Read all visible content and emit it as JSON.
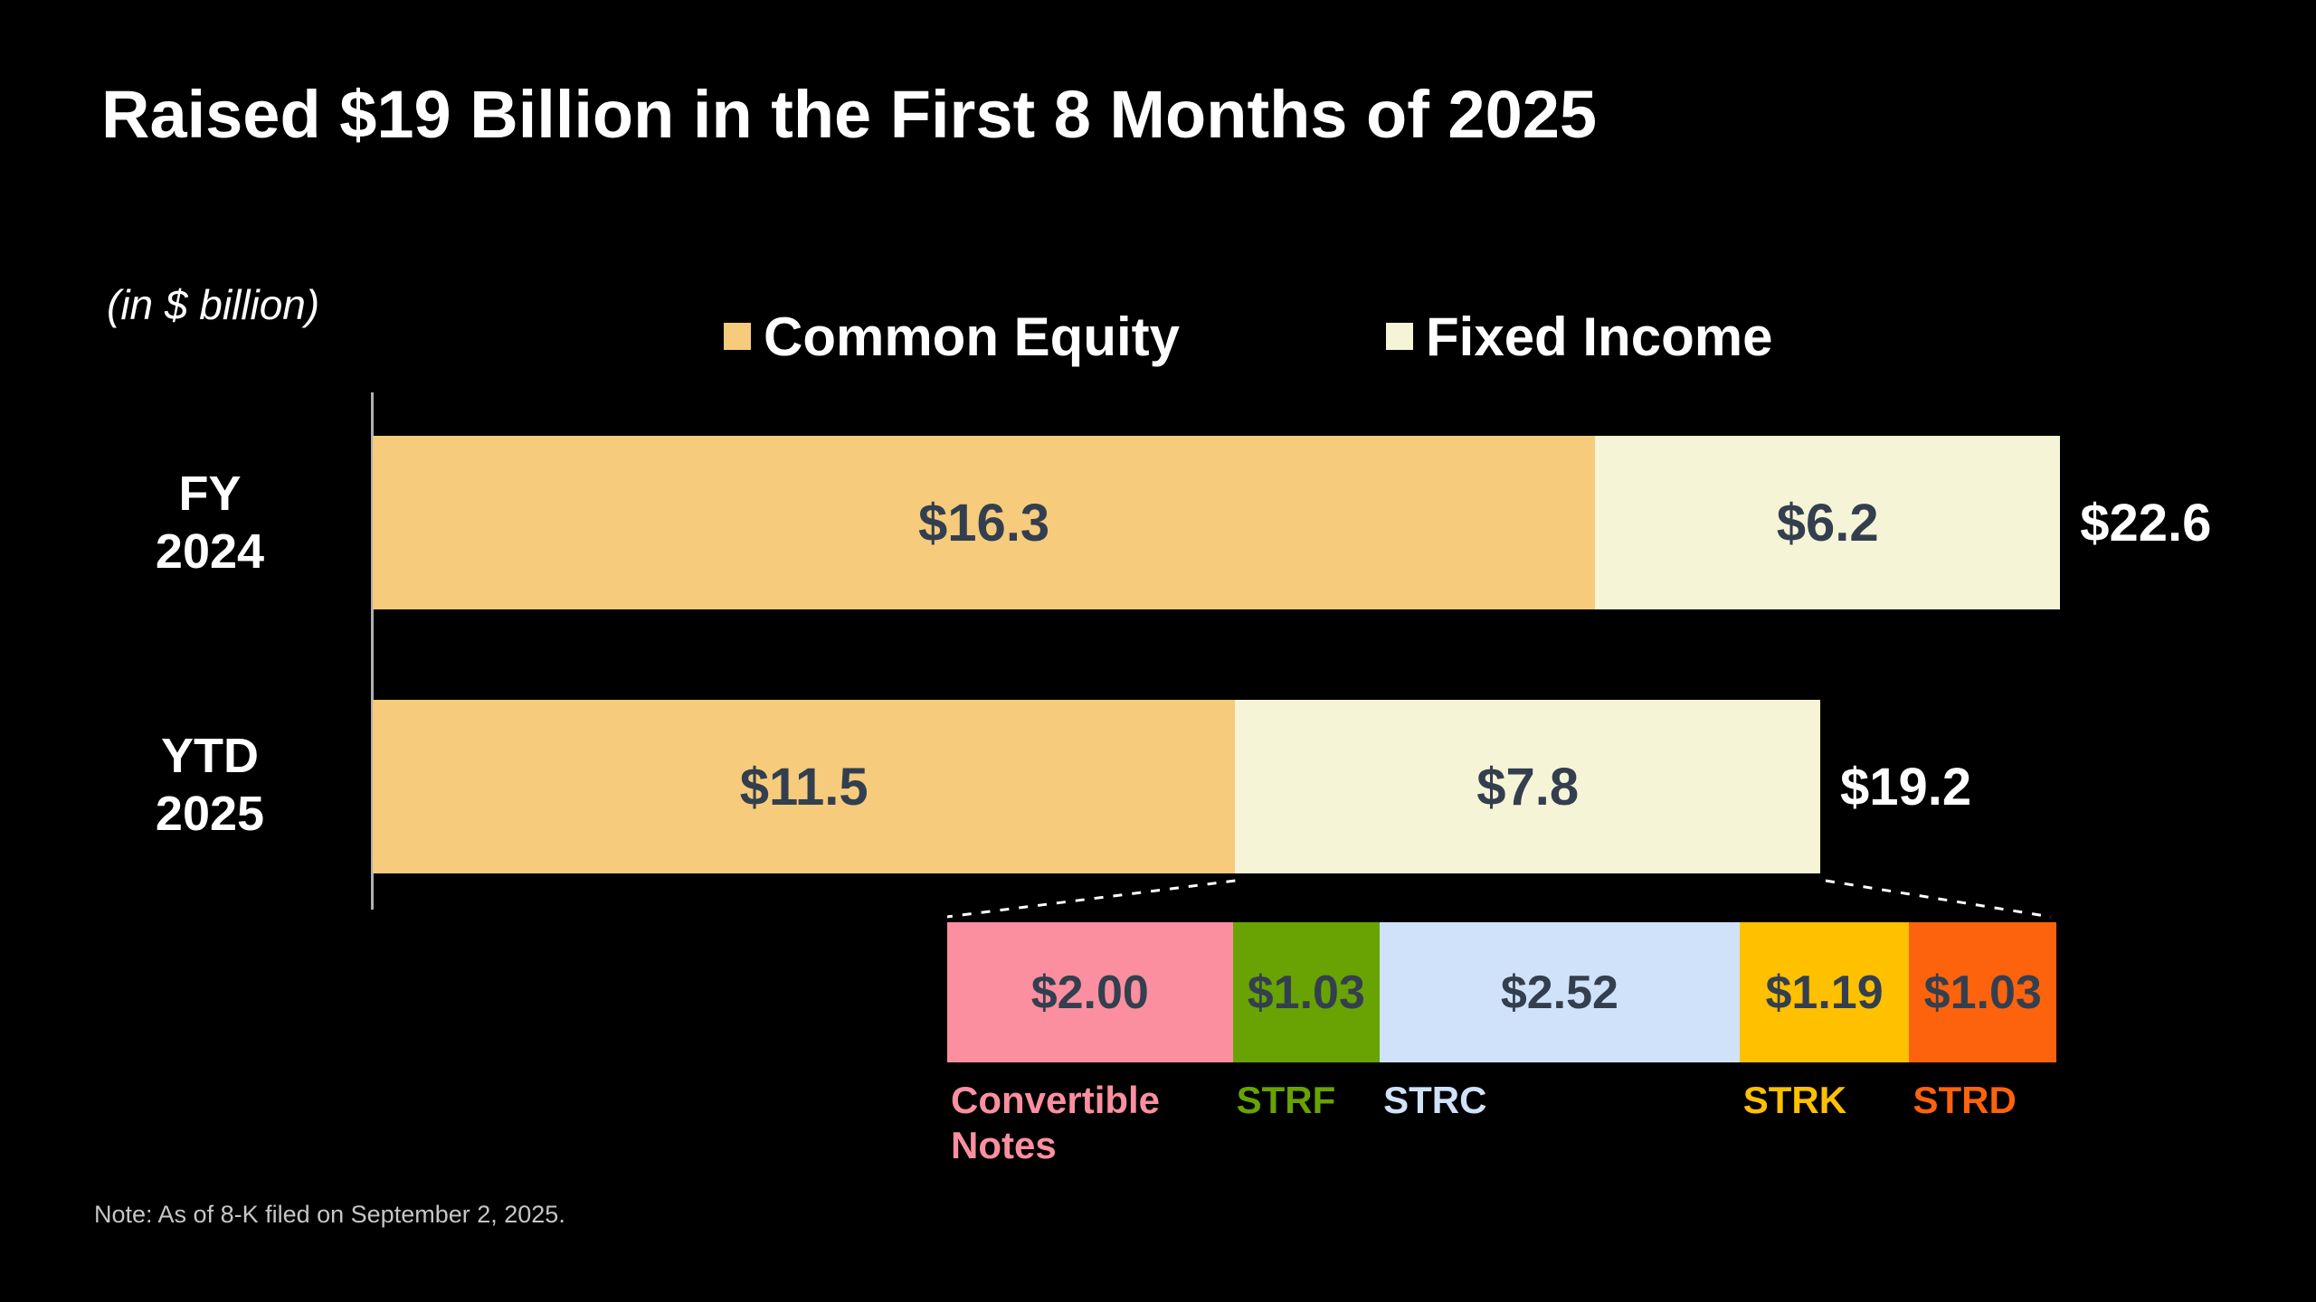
{
  "title": "Raised $19 Billion in the First 8 Months of 2025",
  "unit_label": "(in $ billion)",
  "footnote": "Note: As of 8-K filed on September 2, 2025.",
  "colors": {
    "background": "#000000",
    "title_text": "#FFFFFF",
    "bar_value_text": "#333F4F",
    "total_text": "#FFFFFF",
    "footnote_text": "#C6C6C6",
    "axis_line": "#B0B0B0",
    "callout_line": "#FFFFFF"
  },
  "legend": {
    "items": [
      {
        "label": "Common Equity",
        "color": "#F6CB7C"
      },
      {
        "label": "Fixed Income",
        "color": "#F5F4D6"
      }
    ]
  },
  "chart_data": {
    "type": "bar",
    "orientation": "horizontal-stacked",
    "unit": "USD billions",
    "title": "Raised $19 Billion in the First 8 Months of 2025",
    "axis": {
      "x_visible": false,
      "y_baseline_visible": true,
      "grid": false,
      "xlim": [
        0,
        24
      ]
    },
    "legend_position": "top",
    "categories": [
      [
        "FY",
        "2024"
      ],
      [
        "YTD",
        "2025"
      ]
    ],
    "series": [
      {
        "name": "Common Equity",
        "color": "#F6CB7C",
        "values": [
          16.3,
          11.5
        ],
        "value_labels": [
          "$16.3",
          "$11.5"
        ]
      },
      {
        "name": "Fixed Income",
        "color": "#F5F4D6",
        "values": [
          6.2,
          7.8
        ],
        "value_labels": [
          "$6.2",
          "$7.8"
        ]
      }
    ],
    "totals": {
      "values": [
        22.6,
        19.2
      ],
      "labels": [
        "$22.6",
        "$19.2"
      ]
    },
    "breakdown": {
      "description": "Composition of YTD 2025 Fixed Income ($7.8B), indicated by dashed callout lines",
      "segments": [
        {
          "label": "Convertible Notes",
          "value": 2.0,
          "value_label": "$2.00",
          "color": "#FB8F9F"
        },
        {
          "label": "STRF",
          "value": 1.03,
          "value_label": "$1.03",
          "color": "#68A303"
        },
        {
          "label": "STRC",
          "value": 2.52,
          "value_label": "$2.52",
          "color": "#D0E2F9"
        },
        {
          "label": "STRK",
          "value": 1.19,
          "value_label": "$1.19",
          "color": "#FFC000"
        },
        {
          "label": "STRD",
          "value": 1.03,
          "value_label": "$1.03",
          "color": "#FD620D"
        }
      ]
    }
  }
}
